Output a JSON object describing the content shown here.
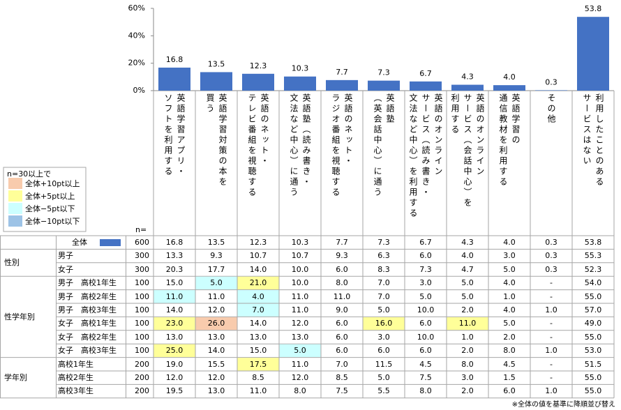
{
  "chart_data": {
    "type": "bar",
    "categories": [
      "英語学習アプリ・\nソフトを利用する",
      "英語学習対策の本を\n買う",
      "英語のネット・\nテレビ番組を視聴する",
      "英語塾（読み書き・\n文法など中心）に通う",
      "英語のネット・\nラジオ番組を視聴する",
      "英語塾\n（英会話中心）に通う",
      "英語のオンライン\nサービス（読み書き・\n文法など中心）を利用する",
      "英語のオンライン\nサービス（会話中心）を\n利用する",
      "英語学習の\n通信教材を利用する",
      "その他",
      "利用したことのある\nサービスはない"
    ],
    "values": [
      16.8,
      13.5,
      12.3,
      10.3,
      7.7,
      7.3,
      6.7,
      4.3,
      4.0,
      0.3,
      53.8
    ],
    "value_labels": [
      "16.8",
      "13.5",
      "12.3",
      "10.3",
      "7.7",
      "7.3",
      "6.7",
      "4.3",
      "4.0",
      "0.3",
      "53.8"
    ],
    "color": "#4472c4",
    "ylim": [
      0,
      60
    ],
    "yticks": [
      {
        "value": 0,
        "label": "0%"
      },
      {
        "value": 20,
        "label": "20%"
      },
      {
        "value": 40,
        "label": "40%"
      },
      {
        "value": 60,
        "label": "60%"
      }
    ]
  },
  "legend": {
    "title": "n=30以上で",
    "items": [
      {
        "label": "全体+10pt以上",
        "color": "#f8cbad"
      },
      {
        "label": "全体+5pt以上",
        "color": "#ffff99"
      },
      {
        "label": "全体−5pt以下",
        "color": "#ccffff"
      },
      {
        "label": "全体−10pt以下",
        "color": "#9dc3e6"
      }
    ]
  },
  "n_header": "n=",
  "table": {
    "sections": [
      {
        "rows": [
          {
            "label": "全体",
            "n": "600",
            "values": [
              "16.8",
              "13.5",
              "12.3",
              "10.3",
              "7.7",
              "7.3",
              "6.7",
              "4.3",
              "4.0",
              "0.3",
              "53.8"
            ]
          }
        ]
      },
      {
        "group": "性別",
        "rows": [
          {
            "label": "男子",
            "n": "300",
            "values": [
              "13.3",
              "9.3",
              "10.7",
              "10.7",
              "9.3",
              "6.3",
              "6.0",
              "4.0",
              "3.0",
              "0.3",
              "55.3"
            ]
          },
          {
            "label": "女子",
            "n": "300",
            "values": [
              "20.3",
              "17.7",
              "14.0",
              "10.0",
              "6.0",
              "8.3",
              "7.3",
              "4.7",
              "5.0",
              "0.3",
              "52.3"
            ]
          }
        ]
      },
      {
        "group": "性学年別",
        "rows": [
          {
            "label": "男子　高校1年生",
            "n": "100",
            "values": [
              "15.0",
              "5.0",
              "21.0",
              "10.0",
              "8.0",
              "7.0",
              "3.0",
              "5.0",
              "4.0",
              "-",
              "54.0"
            ],
            "highlight": [
              null,
              2,
              1,
              null,
              null,
              null,
              null,
              null,
              null,
              null,
              null
            ]
          },
          {
            "label": "男子　高校2年生",
            "n": "100",
            "values": [
              "11.0",
              "11.0",
              "4.0",
              "11.0",
              "11.0",
              "7.0",
              "5.0",
              "5.0",
              "1.0",
              "-",
              "55.0"
            ],
            "highlight": [
              2,
              null,
              2,
              null,
              null,
              null,
              null,
              null,
              null,
              null,
              null
            ]
          },
          {
            "label": "男子　高校3年生",
            "n": "100",
            "values": [
              "14.0",
              "12.0",
              "7.0",
              "11.0",
              "9.0",
              "5.0",
              "10.0",
              "2.0",
              "4.0",
              "1.0",
              "57.0"
            ],
            "highlight": [
              null,
              null,
              2,
              null,
              null,
              null,
              null,
              null,
              null,
              null,
              null
            ]
          },
          {
            "label": "女子　高校1年生",
            "n": "100",
            "values": [
              "23.0",
              "26.0",
              "14.0",
              "12.0",
              "6.0",
              "16.0",
              "6.0",
              "11.0",
              "5.0",
              "-",
              "49.0"
            ],
            "highlight": [
              1,
              0,
              null,
              null,
              null,
              1,
              null,
              1,
              null,
              null,
              null
            ]
          },
          {
            "label": "女子　高校2年生",
            "n": "100",
            "values": [
              "13.0",
              "13.0",
              "13.0",
              "13.0",
              "6.0",
              "3.0",
              "10.0",
              "1.0",
              "2.0",
              "-",
              "55.0"
            ]
          },
          {
            "label": "女子　高校3年生",
            "n": "100",
            "values": [
              "25.0",
              "14.0",
              "15.0",
              "5.0",
              "6.0",
              "6.0",
              "6.0",
              "2.0",
              "8.0",
              "1.0",
              "53.0"
            ],
            "highlight": [
              1,
              null,
              null,
              2,
              null,
              null,
              null,
              null,
              null,
              null,
              null
            ]
          }
        ]
      },
      {
        "group": "学年別",
        "rows": [
          {
            "label": "高校1年生",
            "n": "200",
            "values": [
              "19.0",
              "15.5",
              "17.5",
              "11.0",
              "7.0",
              "11.5",
              "4.5",
              "8.0",
              "4.5",
              "-",
              "51.5"
            ],
            "highlight": [
              null,
              null,
              1,
              null,
              null,
              null,
              null,
              null,
              null,
              null,
              null
            ]
          },
          {
            "label": "高校2年生",
            "n": "200",
            "values": [
              "12.0",
              "12.0",
              "8.5",
              "12.0",
              "8.5",
              "5.0",
              "7.5",
              "3.0",
              "1.5",
              "-",
              "55.0"
            ]
          },
          {
            "label": "高校3年生",
            "n": "200",
            "values": [
              "19.5",
              "13.0",
              "11.0",
              "8.0",
              "7.5",
              "5.5",
              "8.0",
              "2.0",
              "6.0",
              "1.0",
              "55.0"
            ]
          }
        ]
      }
    ]
  },
  "footnote": "※全体の値を基準に降順並び替え"
}
